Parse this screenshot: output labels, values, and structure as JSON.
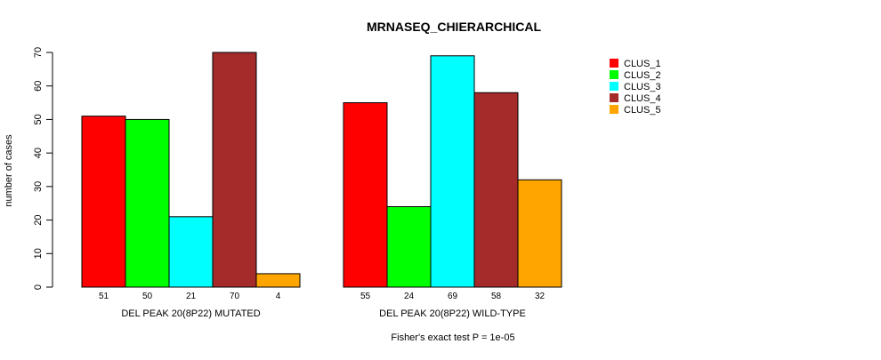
{
  "chart_data": {
    "type": "bar",
    "title": "MRNASEQ_CHIERARCHICAL",
    "ylabel": "number of cases",
    "ylim": [
      0,
      70
    ],
    "y_ticks": [
      0,
      10,
      20,
      30,
      40,
      50,
      60,
      70
    ],
    "series_names": [
      "CLUS_1",
      "CLUS_2",
      "CLUS_3",
      "CLUS_4",
      "CLUS_5"
    ],
    "colors": [
      "#ff0000",
      "#00ff00",
      "#00ffff",
      "#a52a2a",
      "#ffa500"
    ],
    "groups": [
      {
        "name": "DEL PEAK 20(8P22) MUTATED",
        "values": [
          51,
          50,
          21,
          70,
          4
        ]
      },
      {
        "name": "DEL PEAK 20(8P22) WILD-TYPE",
        "values": [
          55,
          24,
          69,
          58,
          32
        ]
      }
    ],
    "footnote": "Fisher's exact test P = 1e-05",
    "legend_position": "top-right"
  }
}
